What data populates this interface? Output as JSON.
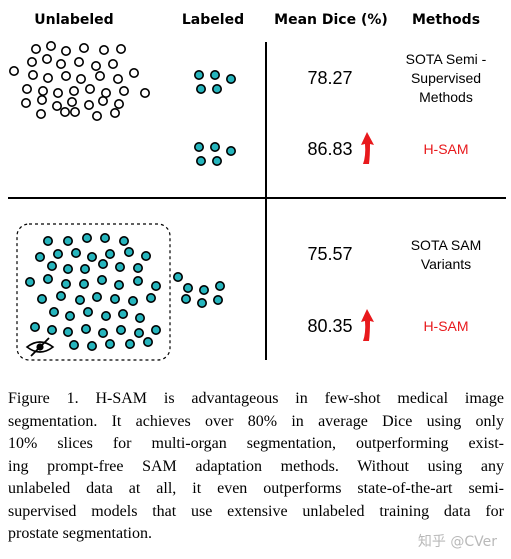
{
  "figure": {
    "headers": {
      "unlabeled": "Unlabeled",
      "labeled": "Labeled",
      "dice": "Mean Dice (%)",
      "methods": "Methods"
    },
    "rows": [
      {
        "dice": "78.27",
        "method_lines": [
          "SOTA Semi -",
          "Supervised",
          "Methods"
        ],
        "highlight": false
      },
      {
        "dice": "86.83",
        "method_lines": [
          "H-SAM"
        ],
        "highlight": true
      },
      {
        "dice": "75.57",
        "method_lines": [
          "SOTA SAM",
          "Variants"
        ],
        "highlight": false
      },
      {
        "dice": "80.35",
        "method_lines": [
          "H-SAM"
        ],
        "highlight": true
      }
    ],
    "colors": {
      "teal": "#26b5bd",
      "red": "#e8191c",
      "line": "#000000"
    },
    "icons": {
      "up_arrow": "red-up-arrow-icon",
      "hidden": "eye-slash-icon"
    }
  },
  "caption": {
    "lines": [
      "Figure 1.   H-SAM is advantageous in few-shot medical image",
      "segmentation.  It achieves over 80% in average Dice using only",
      "10% slices for multi-organ segmentation, outperforming exist-",
      "ing prompt-free SAM adaptation methods.  Without using any",
      "unlabeled data at all, it even outperforms state-of-the-art semi-",
      "supervised models that use extensive unlabeled training data for",
      "prostate segmentation."
    ]
  },
  "watermark": "知乎 @CVer"
}
